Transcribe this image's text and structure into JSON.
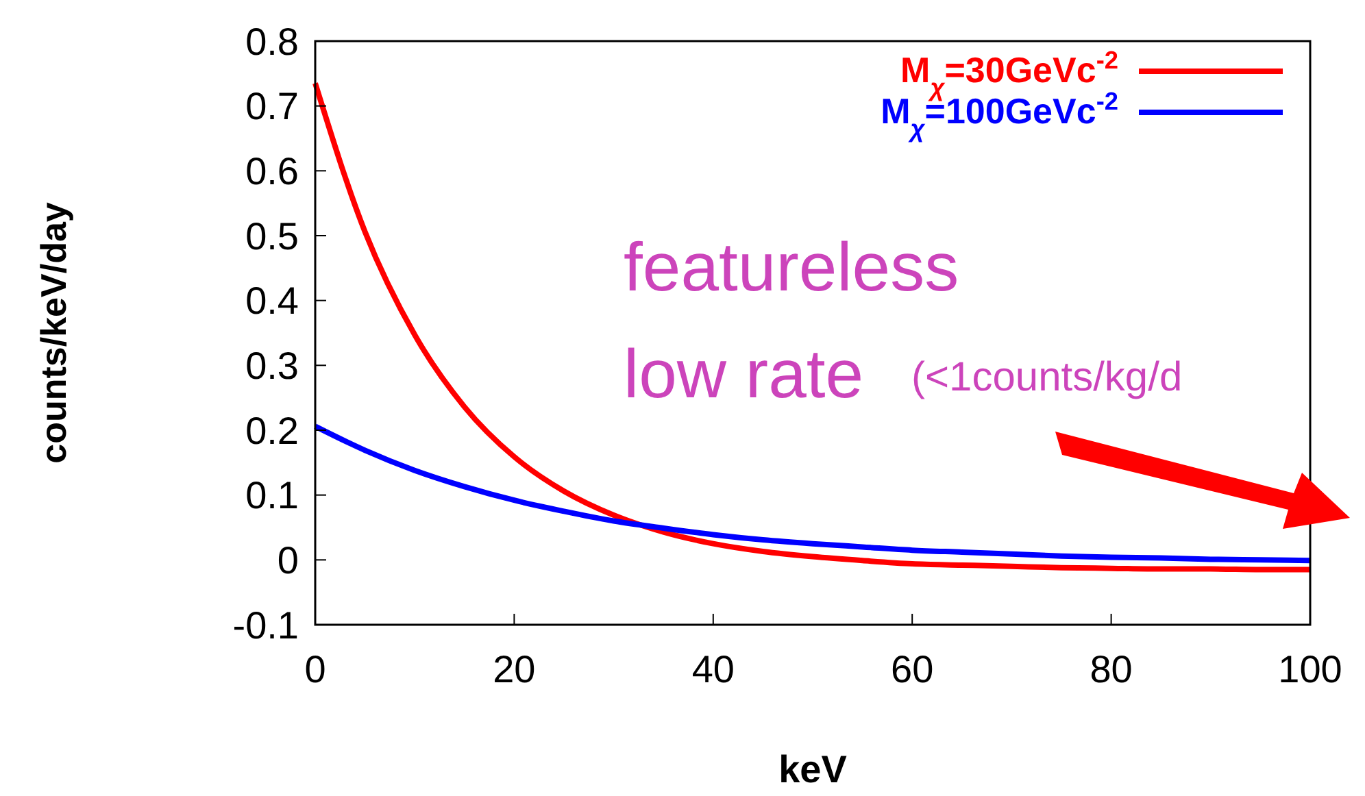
{
  "chart_data": {
    "type": "line",
    "xlabel": "keV",
    "ylabel": "counts/keV/day",
    "x": [
      0,
      5,
      10,
      15,
      20,
      25,
      30,
      35,
      40,
      45,
      50,
      55,
      60,
      65,
      70,
      75,
      80,
      85,
      90,
      95,
      100
    ],
    "series": [
      {
        "name": "M$_{χ}$=30GeVc$^{-2}$",
        "color": "#ff0000",
        "values": [
          0.735,
          0.506,
          0.347,
          0.236,
          0.159,
          0.106,
          0.069,
          0.043,
          0.025,
          0.013,
          0.005,
          -0.001,
          -0.006,
          -0.008,
          -0.01,
          -0.012,
          -0.013,
          -0.014,
          -0.014,
          -0.015,
          -0.015
        ]
      },
      {
        "name": "M$_{χ}$=100GeVc$^{-2}$",
        "color": "#0000ff",
        "values": [
          0.206,
          0.169,
          0.138,
          0.113,
          0.092,
          0.075,
          0.06,
          0.049,
          0.039,
          0.031,
          0.025,
          0.02,
          0.015,
          0.012,
          0.009,
          0.006,
          0.004,
          0.003,
          0.001,
          0.0,
          -0.001
        ]
      }
    ],
    "xlim": [
      0,
      100
    ],
    "xticks": [
      0,
      20,
      40,
      60,
      80,
      100
    ],
    "ylim": [
      -0.1,
      0.8
    ],
    "yticks": [
      -0.1,
      0,
      0.1,
      0.2,
      0.3,
      0.4,
      0.5,
      0.6,
      0.7,
      0.8
    ],
    "annotations": [
      "featureless",
      "low rate",
      "(<1counts/kg/d"
    ],
    "legend": "top right",
    "grid": false,
    "line_style": "solid"
  }
}
